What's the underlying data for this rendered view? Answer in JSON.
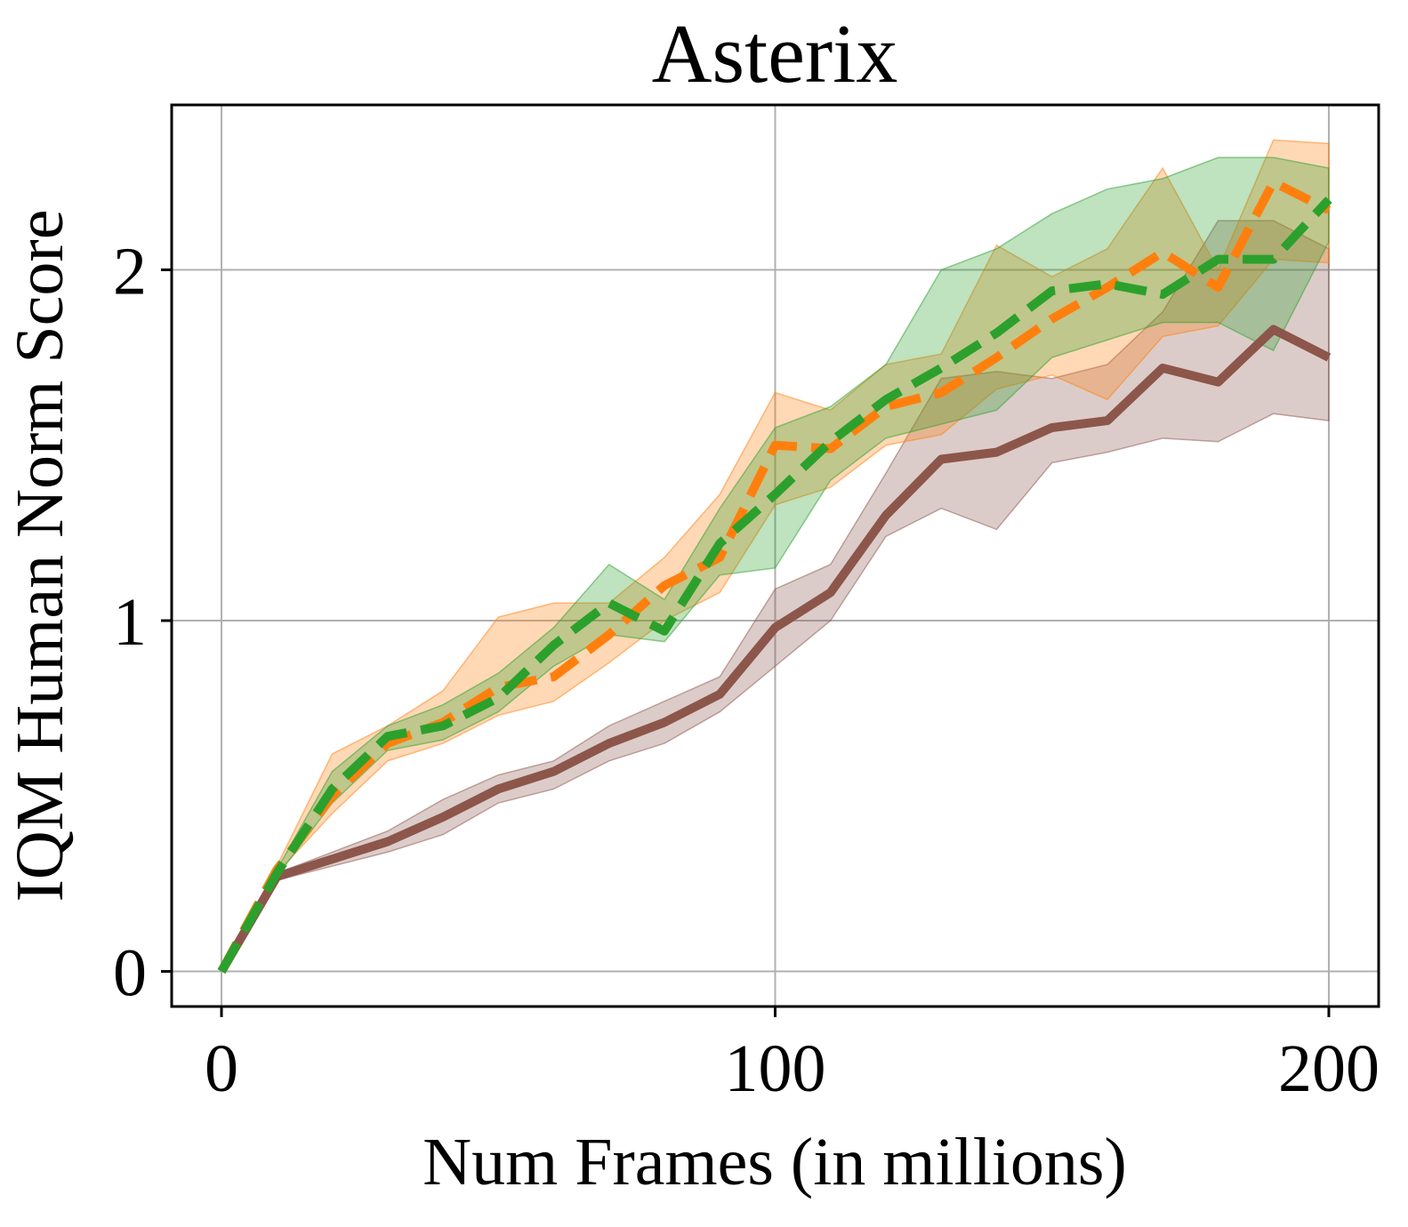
{
  "chart_data": {
    "type": "line",
    "title": "Asterix",
    "xlabel": "Num Frames (in millions)",
    "ylabel": "IQM Human Norm Score",
    "xlim": [
      -9,
      209
    ],
    "ylim": [
      -0.1,
      2.47
    ],
    "xticks": [
      0,
      100,
      200
    ],
    "yticks": [
      0,
      1,
      2
    ],
    "grid": true,
    "legend": "none",
    "x": [
      0,
      10,
      20,
      30,
      40,
      50,
      60,
      70,
      80,
      90,
      100,
      110,
      120,
      130,
      140,
      150,
      160,
      170,
      180,
      190,
      200
    ],
    "series": [
      {
        "color": "#8c564b",
        "style": "solid",
        "values": [
          0.0,
          0.27,
          0.32,
          0.37,
          0.44,
          0.52,
          0.57,
          0.65,
          0.71,
          0.79,
          0.98,
          1.08,
          1.3,
          1.46,
          1.48,
          1.55,
          1.57,
          1.72,
          1.68,
          1.83,
          1.75
        ],
        "band_low": [
          0.0,
          0.26,
          0.3,
          0.34,
          0.39,
          0.48,
          0.52,
          0.6,
          0.65,
          0.74,
          0.87,
          1.0,
          1.24,
          1.32,
          1.26,
          1.45,
          1.48,
          1.52,
          1.51,
          1.59,
          1.57
        ],
        "band_high": [
          0.0,
          0.28,
          0.34,
          0.4,
          0.49,
          0.56,
          0.6,
          0.7,
          0.77,
          0.84,
          1.09,
          1.16,
          1.42,
          1.69,
          1.71,
          1.69,
          1.73,
          1.88,
          2.14,
          2.14,
          2.06
        ]
      },
      {
        "color": "#ff7f0e",
        "style": "dashed",
        "values": [
          0.0,
          0.29,
          0.5,
          0.65,
          0.71,
          0.81,
          0.84,
          0.96,
          1.1,
          1.18,
          1.5,
          1.49,
          1.61,
          1.65,
          1.75,
          1.86,
          1.95,
          2.05,
          1.95,
          2.25,
          2.17
        ],
        "band_low": [
          0.0,
          0.28,
          0.45,
          0.6,
          0.65,
          0.73,
          0.77,
          0.88,
          1.0,
          1.08,
          1.33,
          1.38,
          1.5,
          1.53,
          1.66,
          1.7,
          1.63,
          1.81,
          1.84,
          2.03,
          2.02
        ],
        "band_high": [
          0.0,
          0.3,
          0.62,
          0.7,
          0.8,
          1.01,
          1.05,
          1.05,
          1.18,
          1.36,
          1.65,
          1.6,
          1.73,
          1.76,
          2.07,
          1.98,
          2.06,
          2.29,
          2.0,
          2.37,
          2.36
        ]
      },
      {
        "color": "#2ca02c",
        "style": "dashed",
        "values": [
          0.0,
          0.28,
          0.52,
          0.67,
          0.7,
          0.78,
          0.93,
          1.05,
          0.97,
          1.22,
          1.36,
          1.51,
          1.63,
          1.72,
          1.82,
          1.94,
          1.96,
          1.93,
          2.03,
          2.03,
          2.2
        ],
        "band_low": [
          0.0,
          0.27,
          0.48,
          0.63,
          0.66,
          0.74,
          0.87,
          0.96,
          0.94,
          1.13,
          1.15,
          1.4,
          1.52,
          1.56,
          1.6,
          1.75,
          1.8,
          1.85,
          1.85,
          1.77,
          2.08
        ],
        "band_high": [
          0.0,
          0.29,
          0.57,
          0.7,
          0.76,
          0.85,
          0.98,
          1.16,
          1.06,
          1.32,
          1.55,
          1.61,
          1.73,
          2.0,
          2.06,
          2.16,
          2.23,
          2.26,
          2.32,
          2.32,
          2.29
        ]
      }
    ]
  }
}
